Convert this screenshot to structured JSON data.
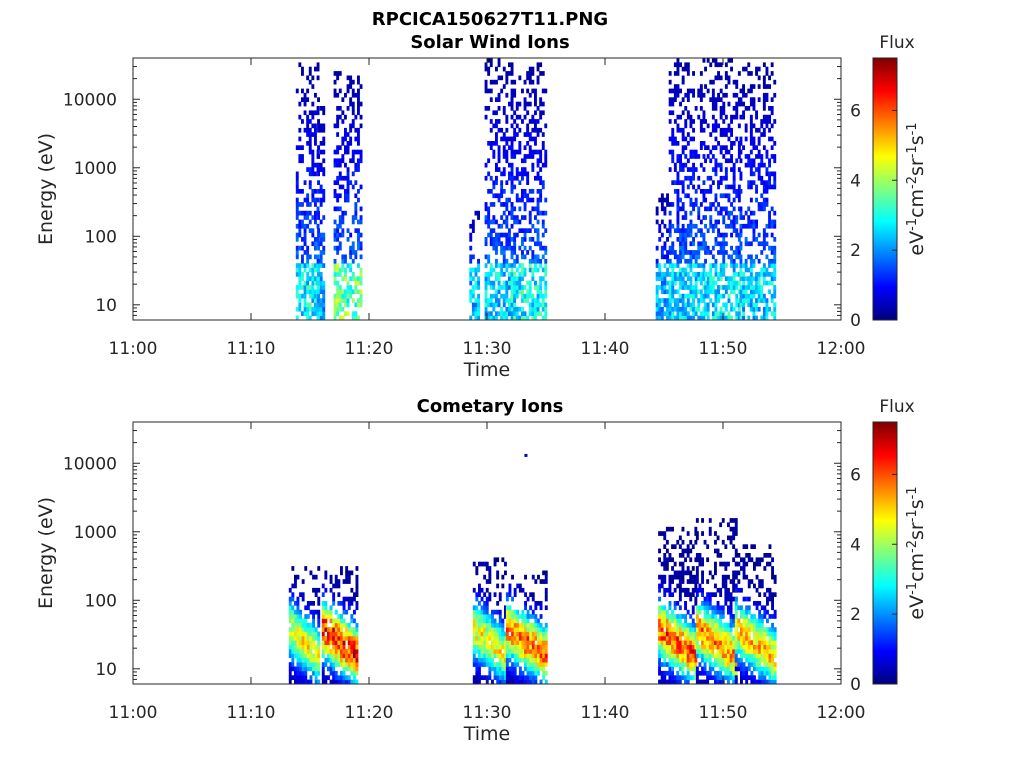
{
  "figure": {
    "title_line1": "RPCICA150627T11.PNG"
  },
  "colormap": {
    "name": "jet",
    "stops": [
      "#00007f",
      "#0000ff",
      "#007fff",
      "#00ffff",
      "#7fff7f",
      "#ffff00",
      "#ff7f00",
      "#ff0000",
      "#7f0000"
    ]
  },
  "chart_data": [
    {
      "type": "heatmap",
      "title": "Solar Wind Ions",
      "xlabel": "Time",
      "ylabel": "Energy (eV)",
      "x_ticks": [
        "11:00",
        "11:10",
        "11:20",
        "11:30",
        "11:40",
        "11:50",
        "12:00"
      ],
      "x_range_min": [
        0,
        60
      ],
      "y_scale": "log",
      "y_ticks": [
        "10",
        "100",
        "1000",
        "10000"
      ],
      "y_range": [
        6,
        40000
      ],
      "grid": false,
      "colorbar": {
        "label": "Flux",
        "unit": "eV-1cm-2sr-1s-1",
        "range": [
          0,
          7.5
        ],
        "ticks": [
          "0",
          "2",
          "4",
          "6"
        ]
      },
      "bursts": [
        {
          "t_start_min": 13.8,
          "t_end_min": 15.6,
          "e_max_eV": 30000,
          "peak_flux": 3.5
        },
        {
          "t_start_min": 15.6,
          "t_end_min": 16.2,
          "e_max_eV": 10000,
          "peak_flux": 2.8
        },
        {
          "t_start_min": 17.0,
          "t_end_min": 19.3,
          "e_max_eV": 25000,
          "peak_flux": 4.5
        },
        {
          "t_start_min": 28.5,
          "t_end_min": 29.2,
          "e_max_eV": 250,
          "peak_flux": 3.0
        },
        {
          "t_start_min": 29.8,
          "t_end_min": 32.0,
          "e_max_eV": 35000,
          "peak_flux": 3.2
        },
        {
          "t_start_min": 32.0,
          "t_end_min": 35.0,
          "e_max_eV": 30000,
          "peak_flux": 3.6
        },
        {
          "t_start_min": 44.3,
          "t_end_min": 45.4,
          "e_max_eV": 400,
          "peak_flux": 2.8
        },
        {
          "t_start_min": 45.4,
          "t_end_min": 48.4,
          "e_max_eV": 35000,
          "peak_flux": 3.2
        },
        {
          "t_start_min": 48.4,
          "t_end_min": 51.4,
          "e_max_eV": 35000,
          "peak_flux": 3.4
        },
        {
          "t_start_min": 51.4,
          "t_end_min": 54.3,
          "e_max_eV": 30000,
          "peak_flux": 3.2
        }
      ]
    },
    {
      "type": "heatmap",
      "title": "Cometary Ions",
      "xlabel": "Time",
      "ylabel": "Energy (eV)",
      "x_ticks": [
        "11:00",
        "11:10",
        "11:20",
        "11:30",
        "11:40",
        "11:50",
        "12:00"
      ],
      "x_range_min": [
        0,
        60
      ],
      "y_scale": "log",
      "y_ticks": [
        "10",
        "100",
        "1000",
        "10000"
      ],
      "y_range": [
        6,
        40000
      ],
      "grid": false,
      "colorbar": {
        "label": "Flux",
        "unit": "eV-1cm-2sr-1s-1",
        "range": [
          0,
          7.5
        ],
        "ticks": [
          "0",
          "2",
          "4",
          "6"
        ]
      },
      "bursts": [
        {
          "t_start_min": 13.2,
          "t_end_min": 15.8,
          "e_max_eV": 300,
          "peak_flux": 5.2
        },
        {
          "t_start_min": 16.0,
          "t_end_min": 19.0,
          "e_max_eV": 300,
          "peak_flux": 7.3
        },
        {
          "t_start_min": 28.8,
          "t_end_min": 31.6,
          "e_max_eV": 400,
          "peak_flux": 5.2
        },
        {
          "t_start_min": 31.6,
          "t_end_min": 35.0,
          "e_max_eV": 250,
          "peak_flux": 6.5
        },
        {
          "t_start_min": 44.5,
          "t_end_min": 47.7,
          "e_max_eV": 1100,
          "peak_flux": 6.8
        },
        {
          "t_start_min": 47.7,
          "t_end_min": 51.0,
          "e_max_eV": 1500,
          "peak_flux": 6.3
        },
        {
          "t_start_min": 51.0,
          "t_end_min": 54.3,
          "e_max_eV": 600,
          "peak_flux": 5.8
        }
      ],
      "outliers": [
        {
          "t_min": 33.3,
          "e_eV": 13000,
          "flux": 0.6
        }
      ]
    }
  ]
}
